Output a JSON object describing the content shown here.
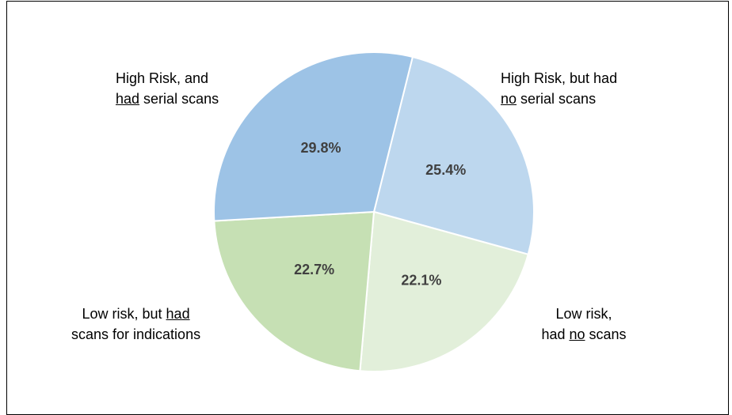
{
  "chart_data": {
    "type": "pie",
    "title": "",
    "slices": [
      {
        "label_line1_a": "High Risk, but had",
        "label_line2_u": "no",
        "label_line2_b": " serial scans",
        "value": 25.4,
        "value_label": "25.4%",
        "color": "#BDD7EE"
      },
      {
        "label_line1_a": "Low risk,",
        "label_line2_a": "had ",
        "label_line2_u": "no",
        "label_line2_b": " scans",
        "value": 22.1,
        "value_label": "22.1%",
        "color": "#E2EFDA"
      },
      {
        "label_line1_a": "Low risk, but ",
        "label_line1_u": "had",
        "label_line2_a": "scans for indications",
        "value": 22.7,
        "value_label": "22.7%",
        "color": "#C6E0B4"
      },
      {
        "label_line1_a": "High Risk, and",
        "label_line2_u": "had",
        "label_line2_b": " serial scans",
        "value": 29.8,
        "value_label": "29.8%",
        "color": "#9DC3E6"
      }
    ]
  }
}
